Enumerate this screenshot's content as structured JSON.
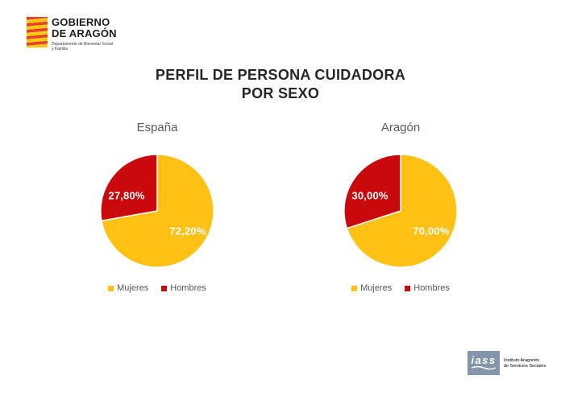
{
  "header_logo": {
    "org_line1": "GOBIERNO",
    "org_line2": "DE ARAGÓN",
    "dept_line1": "Departamento de Bienestar Social",
    "dept_line2": "y Familia"
  },
  "title": {
    "line1": "PERFIL DE PERSONA CUIDADORA",
    "line2": "POR SEXO"
  },
  "colors": {
    "mujeres": "#FFC113",
    "hombres": "#C9090C",
    "title_text": "#262626",
    "chart_title_text": "#595959",
    "legend_text": "#595959",
    "value_label_text": "#FFFFFF",
    "iass_blue": "#8496AC",
    "flag_red": "#E8402F",
    "flag_yellow": "#FFC913"
  },
  "chart_data": [
    {
      "type": "pie",
      "title": "España",
      "labels": [
        "Mujeres",
        "Hombres"
      ],
      "values": [
        72.2,
        27.8
      ],
      "value_labels": [
        "72,20%",
        "27,80%"
      ],
      "colors": [
        "#FFC113",
        "#C9090C"
      ],
      "start_angle_deg": 0,
      "direction": "clockwise",
      "legend_position": "bottom"
    },
    {
      "type": "pie",
      "title": "Aragón",
      "labels": [
        "Mujeres",
        "Hombres"
      ],
      "values": [
        70.0,
        30.0
      ],
      "value_labels": [
        "70,00%",
        "30,00%"
      ],
      "colors": [
        "#FFC113",
        "#C9090C"
      ],
      "start_angle_deg": 0,
      "direction": "clockwise",
      "legend_position": "bottom"
    }
  ],
  "footer_logo": {
    "acronym": "iass",
    "name_line1": "Instituto Aragonés",
    "name_line2": "de Servicios Sociales"
  }
}
